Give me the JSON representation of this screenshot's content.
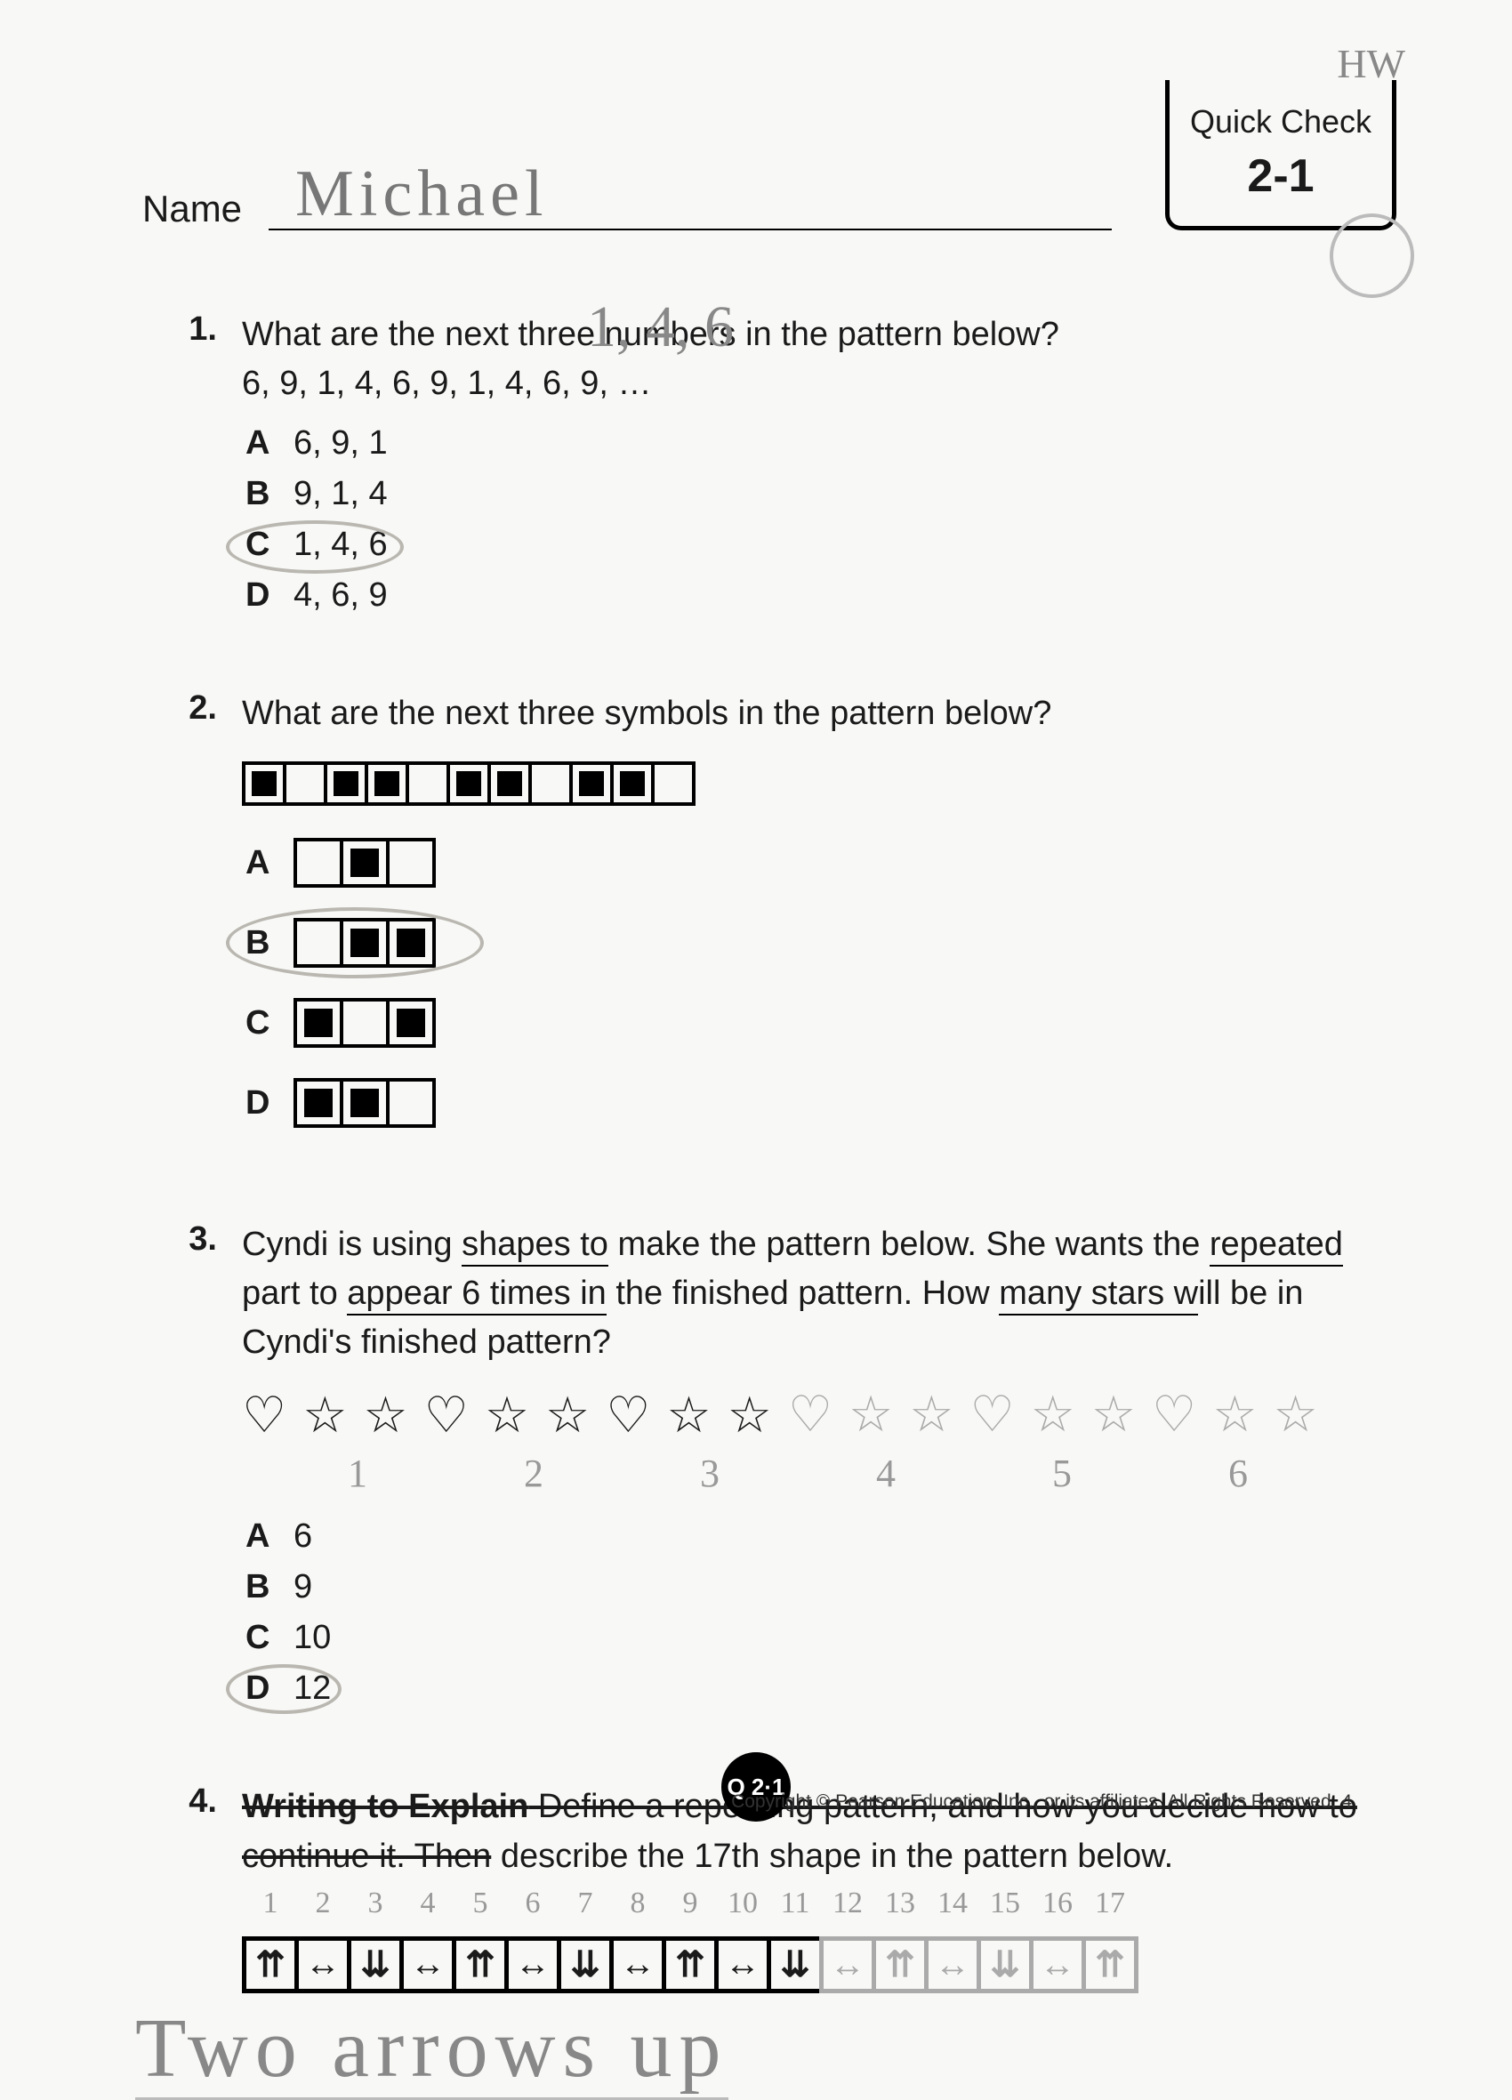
{
  "header": {
    "name_label": "Name",
    "name_value": "Michael",
    "quick_check_label": "Quick Check",
    "quick_check_num": "2-1",
    "hw_note": "HW"
  },
  "q1": {
    "num": "1.",
    "text": "What are the next three numbers in the pattern below?",
    "sequence": "6, 9, 1, 4, 6, 9, 1, 4, 6, 9, …",
    "hand_note": "1, 4, 6",
    "options": [
      {
        "letter": "A",
        "text": "6, 9, 1"
      },
      {
        "letter": "B",
        "text": "9, 1, 4"
      },
      {
        "letter": "C",
        "text": "1, 4, 6"
      },
      {
        "letter": "D",
        "text": "4, 6, 9"
      }
    ],
    "circled": "C"
  },
  "q2": {
    "num": "2.",
    "text": "What are the next three symbols in the pattern below?",
    "pattern": [
      1,
      0,
      1,
      1,
      0,
      1,
      1,
      0,
      1,
      1,
      0
    ],
    "options": [
      {
        "letter": "A",
        "cells": [
          0,
          1,
          0
        ]
      },
      {
        "letter": "B",
        "cells": [
          0,
          1,
          1
        ]
      },
      {
        "letter": "C",
        "cells": [
          1,
          0,
          1
        ]
      },
      {
        "letter": "D",
        "cells": [
          1,
          1,
          0
        ]
      }
    ],
    "circled": "B"
  },
  "q3": {
    "num": "3.",
    "text_parts": [
      "Cyndi is using ",
      "shapes to",
      " make the pattern below. She wants the ",
      "repeated",
      " part to ",
      "appear 6 times in",
      " the finished pattern. How ",
      "many stars w",
      "ill be in Cyndi's finished pattern?"
    ],
    "shapes_printed": [
      "♡",
      "☆",
      "☆",
      "♡",
      "☆",
      "☆",
      "♡",
      "☆",
      "☆"
    ],
    "shapes_hand": [
      "♡",
      "☆",
      "☆",
      "♡",
      "☆",
      "☆",
      "♡",
      "☆",
      "☆"
    ],
    "group_labels": [
      "1",
      "2",
      "3",
      "4",
      "5",
      "6"
    ],
    "options": [
      {
        "letter": "A",
        "text": "6"
      },
      {
        "letter": "B",
        "text": "9"
      },
      {
        "letter": "C",
        "text": "10"
      },
      {
        "letter": "D",
        "text": "12"
      }
    ],
    "circled": "D"
  },
  "q4": {
    "num": "4.",
    "strike_bold": "Writing to Explain",
    "strike_rest1": " Define a repeating pattern, and how you decide how to",
    "strike_rest2": "continue it. Then",
    "text_after": " describe the 17th shape in the pattern below.",
    "counts": [
      "1",
      "2",
      "3",
      "4",
      "5",
      "6",
      "7",
      "8",
      "9",
      "10",
      "11",
      "12",
      "13",
      "14",
      "15",
      "16",
      "17"
    ],
    "arrows_printed": [
      "⇈",
      "↔",
      "⇊",
      "↔",
      "⇈",
      "↔",
      "⇊",
      "↔",
      "⇈",
      "↔",
      "⇊"
    ],
    "arrows_hand": [
      "↔",
      "⇈",
      "↔",
      "⇊",
      "↔",
      "⇈"
    ],
    "answer": "Two arrows up"
  },
  "footer": {
    "badge": "Q 2·1",
    "copyright": "Copyright © Pearson Education, Inc., or its affiliates. All Rights Reserved. 4"
  },
  "style": {
    "page_bg": "#f8f8f6",
    "text_color": "#1a1a1a",
    "hand_color": "#888888",
    "circle_color": "#b9b7b0"
  }
}
